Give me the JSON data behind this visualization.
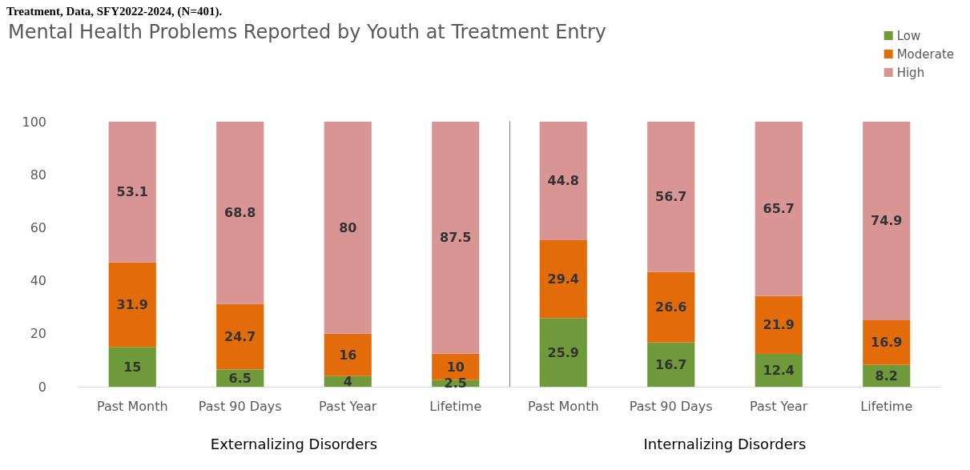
{
  "chart_data": [
    {
      "type": "bar",
      "title": "Mental Health Problems Reported by Youth at Treatment Entry",
      "xlabel": "Externalizing Disorders",
      "categories": [
        "Past Month",
        "Past 90 Days",
        "Past Year",
        "Lifetime"
      ],
      "series": [
        {
          "color": "#6f9a3a",
          "values": [
            15,
            6.5,
            4,
            2.5
          ]
        },
        {
          "color": "#e36c0a",
          "values": [
            31.9,
            24.7,
            16,
            10
          ]
        },
        {
          "color": "#d99594",
          "values": [
            53.1,
            68.8,
            80,
            87.5
          ]
        }
      ],
      "stacked": true,
      "data_labels": true,
      "ylim": [
        0,
        100
      ],
      "yticks": [
        0,
        20,
        40,
        60,
        80,
        100
      ],
      "grid": false,
      "annotations": [
        "Treatment, Data, SFY2022-2024, (N=401)."
      ]
    },
    {
      "type": "bar",
      "xlabel": "Internalizing Disorders",
      "categories": [
        "Past Month",
        "Past 90 Days",
        "Past Year",
        "Lifetime"
      ],
      "series": [
        {
          "name": "Low",
          "color": "#6f9a3a",
          "values": [
            25.9,
            16.7,
            12.4,
            8.2
          ]
        },
        {
          "name": "Moderate",
          "color": "#e36c0a",
          "values": [
            29.4,
            26.6,
            21.9,
            16.9
          ]
        },
        {
          "name": "High",
          "color": "#d99594",
          "values": [
            44.8,
            56.7,
            65.7,
            74.9
          ]
        }
      ],
      "stacked": true,
      "data_labels": true,
      "ylim": [
        0,
        100
      ],
      "yticks": [
        0,
        20,
        40,
        60,
        80,
        100
      ],
      "grid": false,
      "legend": "top right",
      "tick_labels": "x"
    }
  ]
}
